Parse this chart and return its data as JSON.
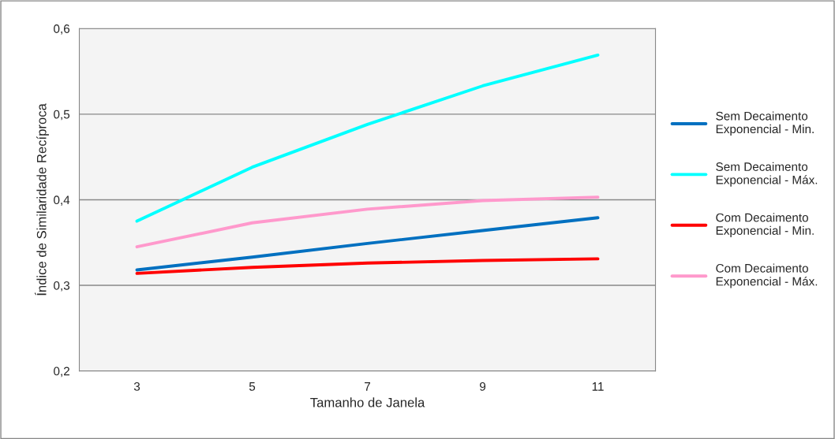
{
  "chart_data": {
    "type": "line",
    "xlabel": "Tamanho de Janela",
    "ylabel": "Índice de Similaridade Recíproca",
    "categories": [
      "3",
      "5",
      "7",
      "9",
      "11"
    ],
    "series": [
      {
        "name": "Sem Decaimento Exponencial - Min.",
        "color": "#0070c0",
        "values": [
          0.318,
          0.333,
          0.349,
          0.364,
          0.379
        ]
      },
      {
        "name": "Sem Decaimento Exponencial - Máx.",
        "color": "#00ffff",
        "values": [
          0.375,
          0.438,
          0.488,
          0.533,
          0.569
        ]
      },
      {
        "name": "Com Decaimento Exponencial - Min.",
        "color": "#ff0000",
        "values": [
          0.314,
          0.321,
          0.326,
          0.329,
          0.331
        ]
      },
      {
        "name": "Com Decaimento Exponencial - Máx.",
        "color": "#ff99cc",
        "values": [
          0.345,
          0.373,
          0.389,
          0.399,
          0.403
        ]
      }
    ],
    "ylim": [
      0.2,
      0.6
    ],
    "yticks": [
      {
        "value": 0.2,
        "label": "0,2"
      },
      {
        "value": 0.3,
        "label": "0,3"
      },
      {
        "value": 0.4,
        "label": "0,4"
      },
      {
        "value": 0.5,
        "label": "0,5"
      },
      {
        "value": 0.6,
        "label": "0,6"
      }
    ],
    "grid": "y",
    "legend": "right",
    "marker": "none",
    "line_style": "solid"
  }
}
